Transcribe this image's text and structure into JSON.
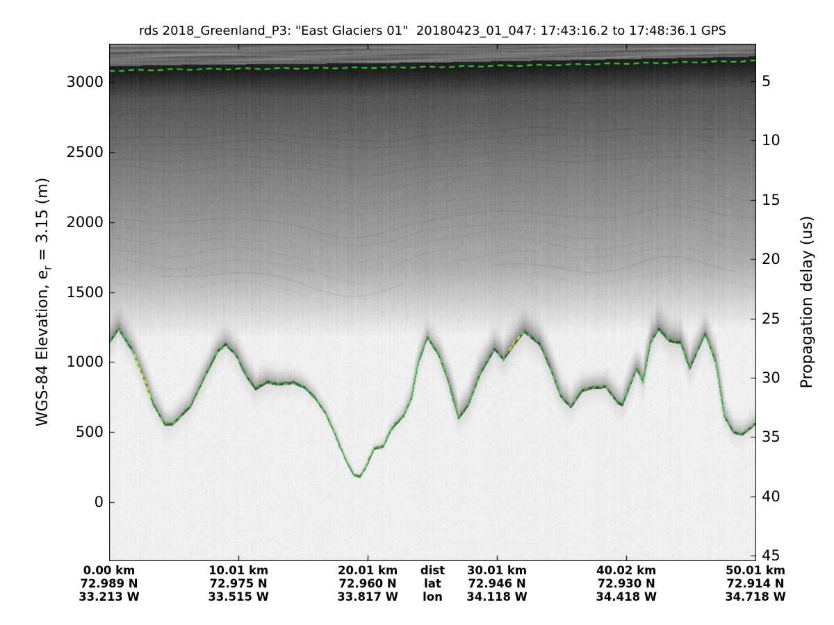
{
  "figure": {
    "title": "rds 2018_Greenland_P3: \"East Glaciers 01\"  20180423_01_047: 17:43:16.2 to 17:48:36.1 GPS"
  },
  "left_axis": {
    "label_prefix": "WGS-84 Elevation, e",
    "label_sub": "r",
    "label_suffix": " = 3.15 (m)",
    "tick_values": [
      3000,
      2500,
      2000,
      1500,
      1000,
      500,
      0
    ]
  },
  "right_axis": {
    "label": "Propagation delay (us)",
    "tick_values": [
      5,
      10,
      15,
      20,
      25,
      30,
      35,
      40,
      45
    ]
  },
  "bottom_axis": {
    "row_headers": [
      "dist",
      "lat",
      "lon"
    ],
    "columns": [
      {
        "km": 0.0,
        "dist": "0.00 km",
        "lat": "72.989 N",
        "lon": "33.213 W"
      },
      {
        "km": 10.01,
        "dist": "10.01 km",
        "lat": "72.975 N",
        "lon": "33.515 W"
      },
      {
        "km": 20.01,
        "dist": "20.01 km",
        "lat": "72.960 N",
        "lon": "33.817 W"
      },
      {
        "km": 30.01,
        "dist": "30.01 km",
        "lat": "72.946 N",
        "lon": "34.118 W"
      },
      {
        "km": 40.02,
        "dist": "40.02 km",
        "lat": "72.930 N",
        "lon": "34.418 W"
      },
      {
        "km": 50.01,
        "dist": "50.01 km",
        "lat": "72.914 N",
        "lon": "34.718 W"
      }
    ]
  },
  "colors": {
    "pick_line_green": "#32d832",
    "pick_line_yellow": "#e6e636",
    "axis_black": "#000000",
    "echo_dark": "#1f1f1f",
    "background_white": "#f1f1f0"
  },
  "chart_data": {
    "type": "heatmap",
    "description": "Airborne radar depth sounder echogram (grayscale backscatter intensity vs along-track distance and WGS-84 elevation / propagation delay). Green dashed lines are the picked ice surface and ice bottom; short yellow dashed segments are alternate bottom picks.",
    "title": "rds 2018_Greenland_P3: \"East Glaciers 01\"  20180423_01_047: 17:43:16.2 to 17:48:36.1 GPS",
    "x_axis": {
      "label": "dist (km)",
      "range_km": [
        0,
        50.01
      ]
    },
    "y_axis_left": {
      "label": "WGS-84 Elevation, e_r = 3.15 (m)",
      "ticks": [
        3000,
        2500,
        2000,
        1500,
        1000,
        500,
        0
      ],
      "visible_range_m": [
        -421,
        3273
      ]
    },
    "y_axis_right": {
      "label": "Propagation delay (us)",
      "ticks": [
        5,
        10,
        15,
        20,
        25,
        30,
        35,
        40,
        45
      ],
      "visible_range_us": [
        2.9,
        45.5
      ]
    },
    "distance_ticks_km": [
      0.0,
      10.01,
      20.01,
      30.01,
      40.02,
      50.01
    ],
    "latitude_ticks_N": [
      72.989,
      72.975,
      72.96,
      72.946,
      72.93,
      72.914
    ],
    "longitude_ticks_W": [
      33.213,
      33.515,
      33.817,
      34.118,
      34.418,
      34.718
    ],
    "surface_profile_km_m": [
      [
        0,
        3085
      ],
      [
        5,
        3094
      ],
      [
        10,
        3099
      ],
      [
        15,
        3103
      ],
      [
        20,
        3107
      ],
      [
        25,
        3112
      ],
      [
        30,
        3120
      ],
      [
        35,
        3128
      ],
      [
        40,
        3137
      ],
      [
        45,
        3146
      ],
      [
        50.01,
        3155
      ]
    ],
    "bed_profile_km_m": [
      [
        0,
        1140
      ],
      [
        0.7,
        1240
      ],
      [
        1.8,
        1080
      ],
      [
        2.6,
        900
      ],
      [
        3.4,
        700
      ],
      [
        4.3,
        556
      ],
      [
        4.9,
        560
      ],
      [
        6.3,
        690
      ],
      [
        7.4,
        900
      ],
      [
        8.4,
        1080
      ],
      [
        9,
        1130
      ],
      [
        9.8,
        1050
      ],
      [
        10.6,
        900
      ],
      [
        11.3,
        810
      ],
      [
        12.2,
        860
      ],
      [
        13,
        845
      ],
      [
        14.3,
        855
      ],
      [
        15.1,
        820
      ],
      [
        15.8,
        760
      ],
      [
        16.7,
        640
      ],
      [
        17.5,
        480
      ],
      [
        18.2,
        320
      ],
      [
        18.9,
        195
      ],
      [
        19.4,
        185
      ],
      [
        19.9,
        260
      ],
      [
        20.5,
        385
      ],
      [
        21.2,
        400
      ],
      [
        21.8,
        520
      ],
      [
        22.8,
        625
      ],
      [
        23.4,
        750
      ],
      [
        23.9,
        990
      ],
      [
        24.6,
        1180
      ],
      [
        25.5,
        1050
      ],
      [
        26.3,
        840
      ],
      [
        27,
        600
      ],
      [
        27.8,
        700
      ],
      [
        28.7,
        920
      ],
      [
        29.8,
        1095
      ],
      [
        30.5,
        1020
      ],
      [
        31.4,
        1140
      ],
      [
        32.1,
        1220
      ],
      [
        33.3,
        1130
      ],
      [
        34.1,
        960
      ],
      [
        34.9,
        760
      ],
      [
        35.7,
        680
      ],
      [
        36.6,
        800
      ],
      [
        37.4,
        820
      ],
      [
        38.4,
        825
      ],
      [
        39.3,
        715
      ],
      [
        39.7,
        695
      ],
      [
        40.8,
        955
      ],
      [
        41.3,
        860
      ],
      [
        41.9,
        1145
      ],
      [
        42.5,
        1240
      ],
      [
        43.3,
        1155
      ],
      [
        44.2,
        1140
      ],
      [
        44.9,
        955
      ],
      [
        46.1,
        1205
      ],
      [
        46.9,
        1005
      ],
      [
        47.6,
        610
      ],
      [
        48.3,
        500
      ],
      [
        49,
        487
      ],
      [
        49.7,
        540
      ],
      [
        50.01,
        565
      ]
    ],
    "yellow_pick_segments_km": [
      [
        1.92,
        3.26
      ],
      [
        30.95,
        31.95
      ]
    ]
  }
}
